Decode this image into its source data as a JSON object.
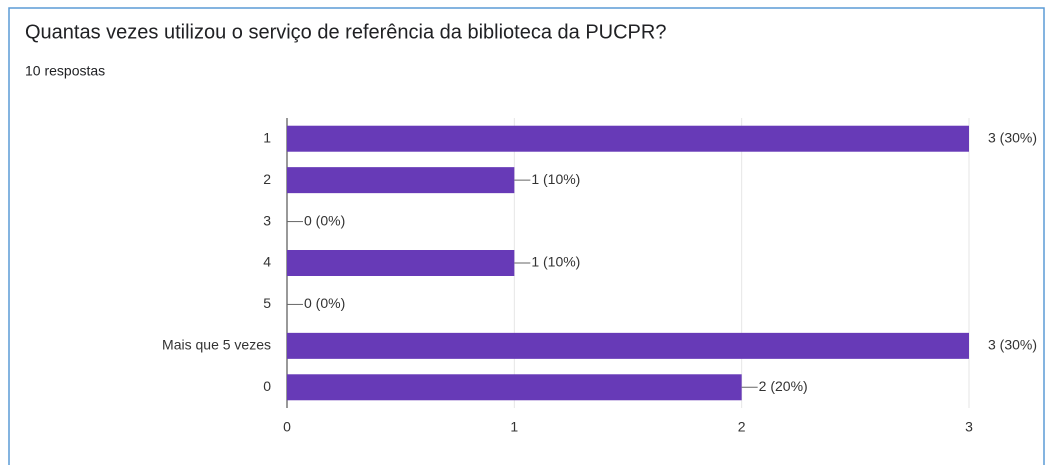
{
  "chart_data": {
    "type": "barh",
    "title": "Quantas vezes utilizou o serviço de referência da biblioteca da PUCPR?",
    "subtitle": "10 respostas",
    "categories": [
      "1",
      "2",
      "3",
      "4",
      "5",
      "Mais que 5 vezes",
      "0"
    ],
    "values": [
      3,
      1,
      0,
      1,
      0,
      3,
      2
    ],
    "value_labels": [
      "3 (30%)",
      "1 (10%)",
      "0 (0%)",
      "1 (10%)",
      "0 (0%)",
      "3 (30%)",
      "2 (20%)"
    ],
    "color": "#673ab7",
    "xlim": [
      0,
      3
    ],
    "xticks": [
      0,
      1,
      2,
      3
    ],
    "grid": true
  }
}
